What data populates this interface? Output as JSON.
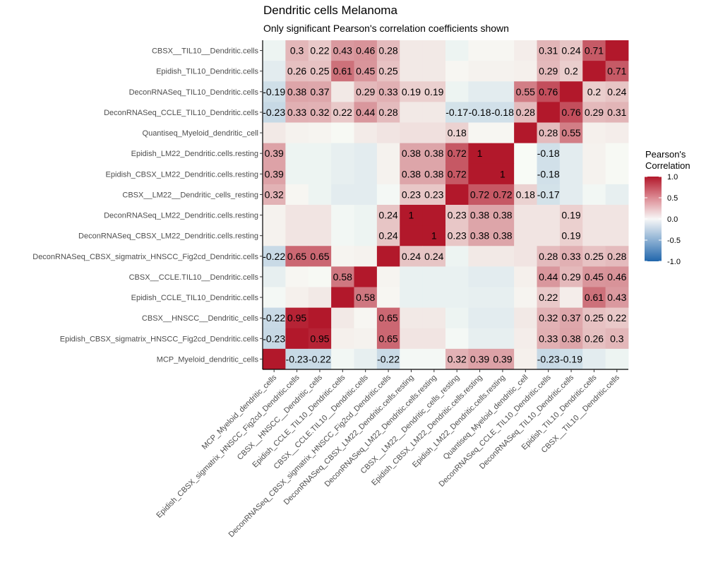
{
  "chart_data": {
    "type": "heatmap",
    "title": "Dendritic cells Melanoma",
    "subtitle": "Only significant Pearson's correlation coefficients shown",
    "x_labels": [
      "MCP_Myeloid_dendritic_cells",
      "Epidish_CBSX_sigmatrix_HNSCC_Fig2cd_Dendritic.cells",
      "CBSX__HNSCC__Dendritic_cells",
      "Epidish_CCLE_TIL10_Dendritic.cells",
      "CBSX__CCLE.TIL10__Dendritic.cells",
      "DeconRNASeq_CBSX_sigmatrix_HNSCC_Fig2cd_Dendritic.cells",
      "DeconRNASeq_CBSX_LM22_Dendritic.cells.resting",
      "DeconRNASeq_LM22_Dendritic.cells.resting",
      "CBSX__LM22__Dendritic_cells_resting",
      "Epidish_CBSX_LM22_Dendritic.cells.resting",
      "Epidish_LM22_Dendritic.cells.resting",
      "Quantiseq_Myeloid_dendritic_cell",
      "DeconRNASeq_CCLE_TIL10_Dendritic.cells",
      "DeconRNASeq_TIL10_Dendritic.cells",
      "Epidish_TIL10_Dendritic.cells",
      "CBSX__TIL10__Dendritic.cells"
    ],
    "y_labels": [
      "CBSX__TIL10__Dendritic.cells",
      "Epidish_TIL10_Dendritic.cells",
      "DeconRNASeq_TIL10_Dendritic.cells",
      "DeconRNASeq_CCLE_TIL10_Dendritic.cells",
      "Quantiseq_Myeloid_dendritic_cell",
      "Epidish_LM22_Dendritic.cells.resting",
      "Epidish_CBSX_LM22_Dendritic.cells.resting",
      "CBSX__LM22__Dendritic_cells_resting",
      "DeconRNASeq_LM22_Dendritic.cells.resting",
      "DeconRNASeq_CBSX_LM22_Dendritic.cells.resting",
      "DeconRNASeq_CBSX_sigmatrix_HNSCC_Fig2cd_Dendritic.cells",
      "CBSX__CCLE.TIL10__Dendritic.cells",
      "Epidish_CCLE_TIL10_Dendritic.cells",
      "CBSX__HNSCC__Dendritic_cells",
      "Epidish_CBSX_sigmatrix_HNSCC_Fig2cd_Dendritic.cells",
      "MCP_Myeloid_dendritic_cells"
    ],
    "values": [
      [
        -0.05,
        0.3,
        0.22,
        0.43,
        0.46,
        0.28,
        0.08,
        0.08,
        -0.05,
        0.02,
        0.02,
        0.06,
        0.31,
        0.24,
        0.71,
        1.0
      ],
      [
        -0.1,
        0.26,
        0.25,
        0.61,
        0.45,
        0.25,
        0.08,
        0.08,
        0.02,
        0.04,
        0.04,
        0.05,
        0.29,
        0.2,
        1.0,
        0.71
      ],
      [
        -0.19,
        0.38,
        0.37,
        0.08,
        0.29,
        0.33,
        0.19,
        0.19,
        -0.05,
        -0.1,
        -0.1,
        0.55,
        0.76,
        1.0,
        0.2,
        0.24
      ],
      [
        -0.23,
        0.33,
        0.32,
        0.22,
        0.44,
        0.28,
        0.08,
        0.08,
        -0.17,
        -0.18,
        -0.18,
        0.28,
        1.0,
        0.76,
        0.29,
        0.31
      ],
      [
        0.08,
        0.04,
        0.03,
        0.01,
        0.07,
        0.1,
        0.12,
        0.12,
        0.18,
        0.02,
        0.02,
        1.0,
        0.28,
        0.55,
        0.05,
        0.06
      ],
      [
        0.39,
        -0.05,
        -0.05,
        -0.08,
        -0.1,
        0.04,
        0.38,
        0.38,
        0.72,
        1.0,
        1.0,
        0.0,
        -0.18,
        -0.1,
        0.04,
        0.01
      ],
      [
        0.39,
        -0.05,
        -0.05,
        -0.08,
        -0.1,
        0.04,
        0.38,
        0.38,
        0.72,
        1.0,
        1.0,
        0.0,
        -0.18,
        -0.1,
        0.04,
        0.01
      ],
      [
        0.32,
        0.02,
        -0.05,
        -0.1,
        -0.1,
        -0.02,
        0.23,
        0.23,
        1.0,
        0.72,
        0.72,
        0.18,
        -0.17,
        -0.1,
        -0.03,
        -0.08
      ],
      [
        0.04,
        0.1,
        0.1,
        -0.03,
        -0.05,
        0.24,
        1.0,
        1.0,
        0.23,
        0.38,
        0.38,
        0.1,
        0.1,
        0.19,
        0.1,
        0.1
      ],
      [
        0.04,
        0.1,
        0.1,
        -0.03,
        -0.05,
        0.24,
        1.0,
        1.0,
        0.23,
        0.38,
        0.38,
        0.1,
        0.1,
        0.19,
        0.1,
        0.1
      ],
      [
        -0.22,
        0.65,
        0.65,
        0.03,
        0.04,
        1.0,
        0.24,
        0.24,
        -0.05,
        0.08,
        0.08,
        0.1,
        0.28,
        0.33,
        0.25,
        0.28
      ],
      [
        -0.08,
        0.02,
        0.01,
        0.58,
        1.0,
        0.03,
        -0.07,
        -0.07,
        -0.07,
        -0.1,
        -0.1,
        0.05,
        0.44,
        0.29,
        0.45,
        0.46
      ],
      [
        -0.02,
        0.05,
        0.08,
        1.0,
        0.58,
        0.02,
        -0.07,
        -0.07,
        -0.07,
        -0.08,
        -0.08,
        0.03,
        0.22,
        0.06,
        0.61,
        0.43
      ],
      [
        -0.22,
        0.95,
        1.0,
        0.08,
        0.02,
        0.65,
        0.08,
        0.08,
        -0.05,
        -0.1,
        -0.1,
        0.08,
        0.32,
        0.37,
        0.25,
        0.22
      ],
      [
        -0.23,
        1.0,
        0.95,
        0.05,
        0.04,
        0.65,
        0.1,
        0.1,
        -0.02,
        -0.08,
        -0.08,
        0.06,
        0.33,
        0.38,
        0.26,
        0.3
      ],
      [
        1.0,
        -0.23,
        -0.22,
        -0.03,
        -0.08,
        -0.22,
        -0.02,
        -0.02,
        0.32,
        0.39,
        0.39,
        0.05,
        -0.23,
        -0.19,
        -0.1,
        -0.05
      ]
    ],
    "labels": [
      [
        "",
        "0.3",
        "0.22",
        "0.43",
        "0.46",
        "0.28",
        "",
        "",
        "",
        "",
        "",
        "",
        "0.31",
        "0.24",
        "0.71",
        ""
      ],
      [
        "",
        "0.26",
        "0.25",
        "0.61",
        "0.45",
        "0.25",
        "",
        "",
        "",
        "",
        "",
        "",
        "0.29",
        "0.2",
        "",
        "0.71"
      ],
      [
        "-0.19",
        "0.38",
        "0.37",
        "",
        "0.29",
        "0.33",
        "0.19",
        "0.19",
        "",
        "",
        "",
        "0.55",
        "0.76",
        "",
        "0.2",
        "0.24"
      ],
      [
        "-0.23",
        "0.33",
        "0.32",
        "0.22",
        "0.44",
        "0.28",
        "",
        "",
        "-0.17",
        "-0.18",
        "-0.18",
        "0.28",
        "",
        "0.76",
        "0.29",
        "0.31"
      ],
      [
        "",
        "",
        "",
        "",
        "",
        "",
        "",
        "",
        "0.18",
        "",
        "",
        "",
        "0.28",
        "0.55",
        "",
        ""
      ],
      [
        "0.39",
        "",
        "",
        "",
        "",
        "",
        "0.38",
        "0.38",
        "0.72",
        "1",
        "",
        "",
        "-0.18",
        "",
        "",
        ""
      ],
      [
        "0.39",
        "",
        "",
        "",
        "",
        "",
        "0.38",
        "0.38",
        "0.72",
        "",
        "1",
        "",
        "-0.18",
        "",
        "",
        ""
      ],
      [
        "0.32",
        "",
        "",
        "",
        "",
        "",
        "0.23",
        "0.23",
        "",
        "0.72",
        "0.72",
        "0.18",
        "-0.17",
        "",
        "",
        ""
      ],
      [
        "",
        "",
        "",
        "",
        "",
        "0.24",
        "1",
        "",
        "0.23",
        "0.38",
        "0.38",
        "",
        "",
        "0.19",
        "",
        ""
      ],
      [
        "",
        "",
        "",
        "",
        "",
        "0.24",
        "",
        "1",
        "0.23",
        "0.38",
        "0.38",
        "",
        "",
        "0.19",
        "",
        ""
      ],
      [
        "-0.22",
        "0.65",
        "0.65",
        "",
        "",
        "",
        "0.24",
        "0.24",
        "",
        "",
        "",
        "",
        "0.28",
        "0.33",
        "0.25",
        "0.28"
      ],
      [
        "",
        "",
        "",
        "0.58",
        "",
        "",
        "",
        "",
        "",
        "",
        "",
        "",
        "0.44",
        "0.29",
        "0.45",
        "0.46"
      ],
      [
        "",
        "",
        "",
        "",
        "0.58",
        "",
        "",
        "",
        "",
        "",
        "",
        "",
        "0.22",
        "",
        "0.61",
        "0.43"
      ],
      [
        "-0.22",
        "0.95",
        "",
        "",
        "",
        "0.65",
        "",
        "",
        "",
        "",
        "",
        "",
        "0.32",
        "0.37",
        "0.25",
        "0.22"
      ],
      [
        "-0.23",
        "",
        "0.95",
        "",
        "",
        "0.65",
        "",
        "",
        "",
        "",
        "",
        "",
        "0.33",
        "0.38",
        "0.26",
        "0.3"
      ],
      [
        "",
        "-0.23",
        "-0.22",
        "",
        "",
        "-0.22",
        "",
        "",
        "0.32",
        "0.39",
        "0.39",
        "",
        "-0.23",
        "-0.19",
        "",
        ""
      ]
    ],
    "legend": {
      "title_lines": [
        "Pearson's",
        "Correlation"
      ],
      "ticks": [
        "1.0",
        "0.5",
        "0.0",
        "-0.5",
        "-1.0"
      ],
      "tick_values": [
        1.0,
        0.5,
        0.0,
        -0.5,
        -1.0
      ],
      "placement": "right"
    },
    "colors": {
      "high": "#b2182b",
      "mid": "#f7f7f7",
      "low": "#2166ac",
      "mid_tint": "#f8fbf6"
    },
    "range": [
      -1.0,
      1.0
    ]
  }
}
